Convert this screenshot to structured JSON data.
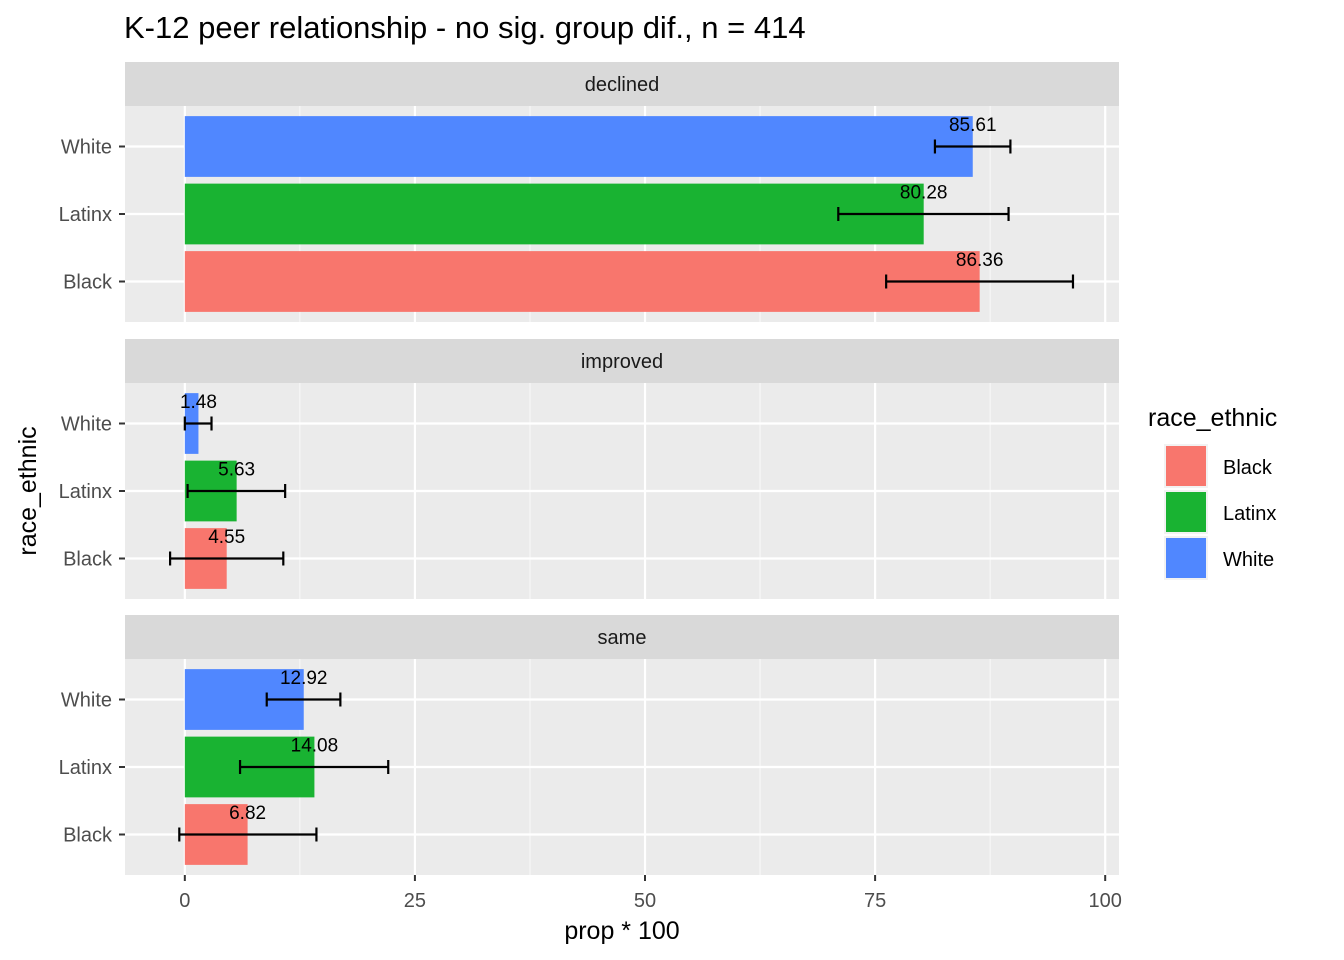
{
  "chart_data": {
    "type": "bar",
    "orientation": "horizontal",
    "title": "K-12 peer relationship - no sig. group dif., n = 414",
    "xlabel": "prop * 100",
    "ylabel": "race_ethnic",
    "xlim": [
      -6.5,
      101.5
    ],
    "x_ticks": [
      "0",
      "25",
      "50",
      "75",
      "100"
    ],
    "x_tick_values": [
      0,
      25,
      50,
      75,
      100
    ],
    "categories": [
      "Black",
      "Latinx",
      "White"
    ],
    "grid": true,
    "legend": {
      "title": "race_ethnic",
      "position": "right",
      "entries": [
        {
          "name": "Black",
          "color": "#F8766D"
        },
        {
          "name": "Latinx",
          "color": "#19B332"
        },
        {
          "name": "White",
          "color": "#5087FF"
        }
      ]
    },
    "facets": [
      {
        "name": "declined",
        "bars": [
          {
            "category": "Black",
            "value": 86.36,
            "label": "86.36",
            "err_low": 76.2,
            "err_high": 96.5
          },
          {
            "category": "Latinx",
            "value": 80.28,
            "label": "80.28",
            "err_low": 71.0,
            "err_high": 89.5
          },
          {
            "category": "White",
            "value": 85.61,
            "label": "85.61",
            "err_low": 81.5,
            "err_high": 89.7
          }
        ]
      },
      {
        "name": "improved",
        "bars": [
          {
            "category": "Black",
            "value": 4.55,
            "label": "4.55",
            "err_low": -1.6,
            "err_high": 10.7
          },
          {
            "category": "Latinx",
            "value": 5.63,
            "label": "5.63",
            "err_low": 0.3,
            "err_high": 10.9
          },
          {
            "category": "White",
            "value": 1.48,
            "label": "1.48",
            "err_low": 0.0,
            "err_high": 2.9
          }
        ]
      },
      {
        "name": "same",
        "bars": [
          {
            "category": "Black",
            "value": 6.82,
            "label": "6.82",
            "err_low": -0.6,
            "err_high": 14.3
          },
          {
            "category": "Latinx",
            "value": 14.08,
            "label": "14.08",
            "err_low": 6.0,
            "err_high": 22.1
          },
          {
            "category": "White",
            "value": 12.92,
            "label": "12.92",
            "err_low": 8.9,
            "err_high": 16.9
          }
        ]
      }
    ]
  }
}
